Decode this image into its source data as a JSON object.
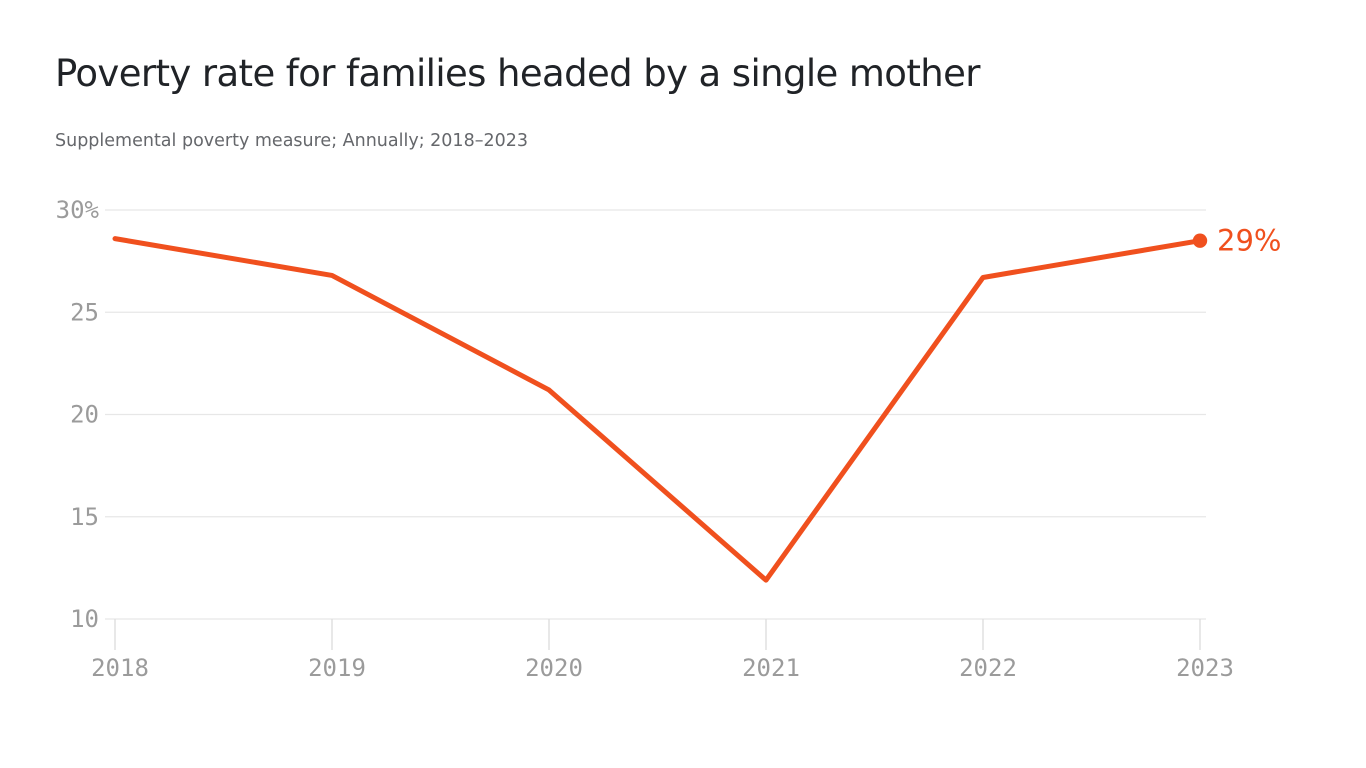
{
  "page": {
    "background": "#ffffff"
  },
  "header": {
    "title": "Poverty rate for families headed by a single mother",
    "subtitle": "Supplemental poverty measure; Annually; 2018–2023"
  },
  "chart_data": {
    "type": "line",
    "title": "Poverty rate for families headed by a single mother",
    "subtitle": "Supplemental poverty measure; Annually; 2018–2023",
    "categories": [
      "2018",
      "2019",
      "2020",
      "2021",
      "2022",
      "2023"
    ],
    "series": [
      {
        "name": "Poverty rate (%)",
        "values": [
          28.6,
          26.8,
          21.2,
          11.9,
          26.7,
          28.5
        ]
      }
    ],
    "end_point_label": "29%",
    "xlabel": "",
    "ylabel": "",
    "ylim": [
      10,
      30
    ],
    "yticks": [
      {
        "value": 30,
        "label": "30%"
      },
      {
        "value": 25,
        "label": "25"
      },
      {
        "value": 20,
        "label": "20"
      },
      {
        "value": 15,
        "label": "15"
      },
      {
        "value": 10,
        "label": "10"
      }
    ],
    "grid": "horizontal",
    "legend": "none",
    "colors": {
      "line": "#f0501e",
      "grid": "#e7e7e7",
      "tick": "#dcdcdc",
      "axis_text": "#9b9b9b",
      "title_text": "#202327",
      "subtitle_text": "#65676b"
    }
  }
}
